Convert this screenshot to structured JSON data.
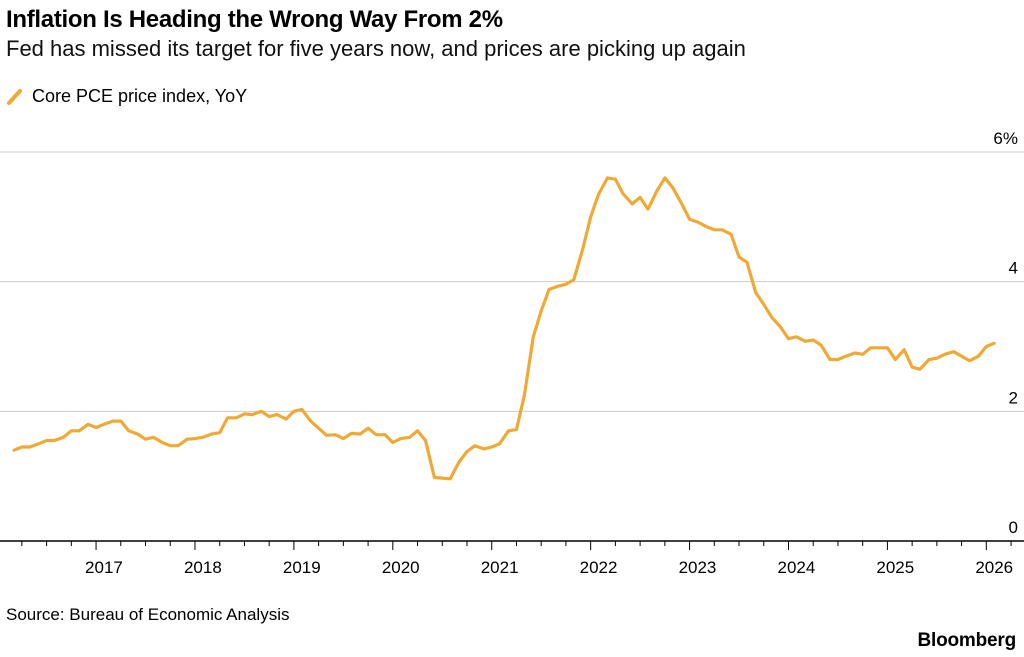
{
  "header": {
    "title": "Inflation Is Heading the Wrong Way From 2%",
    "subtitle": "Fed has missed its target for five years now, and prices are picking up again"
  },
  "legend": {
    "label": "Core PCE price index, YoY",
    "icon": "line-swatch-icon"
  },
  "footer": {
    "source": "Source: Bureau of Economic Analysis",
    "brand": "Bloomberg"
  },
  "colors": {
    "series": "#f0a934",
    "grid": "#cccccc",
    "axis": "#000000",
    "text": "#000000"
  },
  "chart_data": {
    "type": "line",
    "title": "Inflation Is Heading the Wrong Way From 2%",
    "subtitle": "Fed has missed its target for five years now, and prices are picking up again",
    "xlabel": "",
    "ylabel": "",
    "ylim": [
      0,
      6
    ],
    "xlim": [
      2016.13,
      2026.3
    ],
    "yticks": [
      0,
      2,
      4,
      6
    ],
    "ytick_labels": [
      "0",
      "2",
      "4",
      "6%"
    ],
    "xticks": [
      2017,
      2018,
      2019,
      2020,
      2021,
      2022,
      2023,
      2024,
      2025,
      2026
    ],
    "xtick_labels": [
      "2017",
      "2018",
      "2019",
      "2020",
      "2021",
      "2022",
      "2023",
      "2024",
      "2025",
      "2026"
    ],
    "grid": true,
    "legend_position": "top-left",
    "series": [
      {
        "name": "Core PCE price index, YoY",
        "x": [
          2016.17,
          2016.25,
          2016.33,
          2016.42,
          2016.5,
          2016.58,
          2016.67,
          2016.75,
          2016.83,
          2016.92,
          2017.0,
          2017.08,
          2017.17,
          2017.25,
          2017.33,
          2017.42,
          2017.5,
          2017.58,
          2017.67,
          2017.75,
          2017.83,
          2017.92,
          2018.0,
          2018.08,
          2018.17,
          2018.25,
          2018.33,
          2018.42,
          2018.5,
          2018.58,
          2018.67,
          2018.75,
          2018.83,
          2018.92,
          2019.0,
          2019.08,
          2019.17,
          2019.25,
          2019.33,
          2019.42,
          2019.5,
          2019.58,
          2019.67,
          2019.75,
          2019.83,
          2019.92,
          2020.0,
          2020.08,
          2020.17,
          2020.25,
          2020.33,
          2020.42,
          2020.5,
          2020.58,
          2020.67,
          2020.75,
          2020.83,
          2020.92,
          2021.0,
          2021.08,
          2021.17,
          2021.25,
          2021.33,
          2021.42,
          2021.5,
          2021.58,
          2021.67,
          2021.75,
          2021.83,
          2021.92,
          2022.0,
          2022.08,
          2022.17,
          2022.25,
          2022.33,
          2022.42,
          2022.5,
          2022.58,
          2022.67,
          2022.75,
          2022.83,
          2022.92,
          2023.0,
          2023.08,
          2023.17,
          2023.25,
          2023.33,
          2023.42,
          2023.5,
          2023.58,
          2023.67,
          2023.75,
          2023.83,
          2023.92,
          2024.0,
          2024.08,
          2024.17,
          2024.25,
          2024.33,
          2024.42,
          2024.5,
          2024.58,
          2024.67,
          2024.75,
          2024.83,
          2024.92,
          2025.0,
          2025.08,
          2025.17,
          2025.25,
          2025.33,
          2025.42,
          2025.5,
          2025.58,
          2025.67,
          2025.75,
          2025.83,
          2025.92,
          2026.0,
          2026.08
        ],
        "values": [
          1.4,
          1.45,
          1.45,
          1.5,
          1.55,
          1.55,
          1.6,
          1.7,
          1.7,
          1.8,
          1.75,
          1.8,
          1.85,
          1.85,
          1.7,
          1.65,
          1.57,
          1.6,
          1.52,
          1.47,
          1.47,
          1.57,
          1.58,
          1.6,
          1.65,
          1.67,
          1.9,
          1.9,
          1.96,
          1.95,
          2.0,
          1.92,
          1.95,
          1.88,
          2.0,
          2.03,
          1.85,
          1.74,
          1.63,
          1.64,
          1.58,
          1.66,
          1.65,
          1.74,
          1.64,
          1.64,
          1.52,
          1.58,
          1.6,
          1.7,
          1.55,
          0.98,
          0.97,
          0.96,
          1.22,
          1.38,
          1.47,
          1.42,
          1.45,
          1.5,
          1.7,
          1.72,
          2.25,
          3.15,
          3.55,
          3.88,
          3.93,
          3.96,
          4.03,
          4.5,
          5.0,
          5.35,
          5.6,
          5.58,
          5.35,
          5.2,
          5.3,
          5.12,
          5.4,
          5.6,
          5.45,
          5.2,
          4.96,
          4.92,
          4.85,
          4.8,
          4.8,
          4.73,
          4.38,
          4.3,
          3.83,
          3.65,
          3.45,
          3.3,
          3.12,
          3.15,
          3.08,
          3.1,
          3.02,
          2.8,
          2.8,
          2.85,
          2.9,
          2.88,
          2.98,
          2.98,
          2.98,
          2.8,
          2.95,
          2.68,
          2.65,
          2.8,
          2.82,
          2.88,
          2.92,
          2.85,
          2.78,
          2.85,
          3.0,
          3.05
        ]
      }
    ]
  }
}
